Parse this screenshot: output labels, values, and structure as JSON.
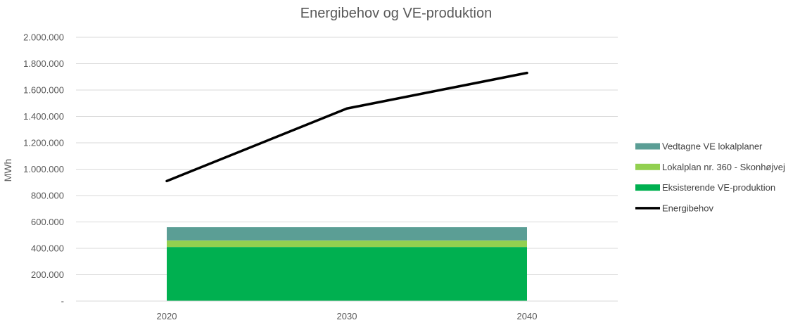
{
  "chart_data": {
    "type": "area",
    "title": "Energibehov og VE-produktion",
    "ylabel": "MWh",
    "xlabel": "",
    "x": [
      "2020",
      "2030",
      "2040"
    ],
    "ylim": [
      0,
      2000000
    ],
    "y_ticks": [
      "-",
      "200.000",
      "400.000",
      "600.000",
      "800.000",
      "1.000.000",
      "1.200.000",
      "1.400.000",
      "1.600.000",
      "1.800.000",
      "2.000.000"
    ],
    "stacked_series": [
      {
        "name": "Eksisterende VE-produktion",
        "color": "#00B050",
        "values": [
          410000,
          410000,
          410000
        ]
      },
      {
        "name": "Lokalplan nr. 360 - Skonhøjvej",
        "color": "#92D050",
        "values": [
          50000,
          50000,
          50000
        ]
      },
      {
        "name": "Vedtagne VE lokalplaner",
        "color": "#5B9E95",
        "values": [
          100000,
          100000,
          100000
        ]
      }
    ],
    "line_series": [
      {
        "name": "Energibehov",
        "color": "#000000",
        "values": [
          910000,
          1460000,
          1730000
        ]
      }
    ],
    "legend_order": [
      "Vedtagne VE lokalplaner",
      "Lokalplan nr. 360 - Skonhøjvej",
      "Eksisterende VE-produktion",
      "Energibehov"
    ],
    "legend_position": "right",
    "grid": true
  }
}
